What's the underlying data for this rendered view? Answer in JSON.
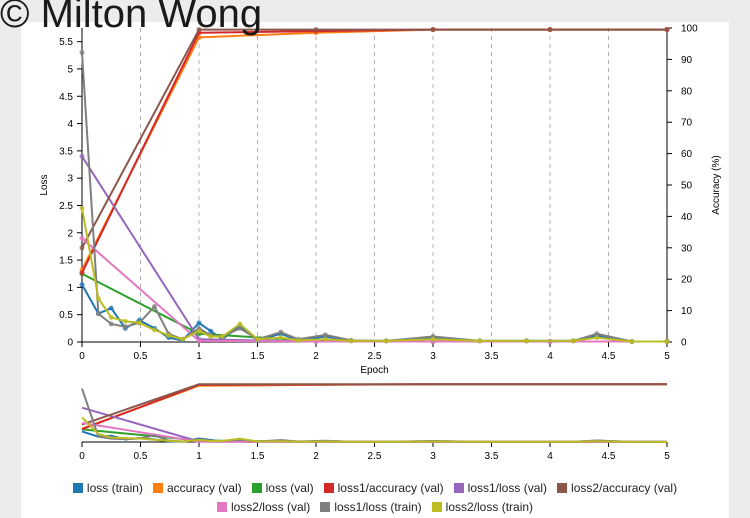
{
  "watermark": "© Milton Wong",
  "colors": {
    "loss_train": "#1f77b4",
    "accuracy_val": "#ff7f0e",
    "loss_val": "#2ca02c",
    "loss1_accuracy_val": "#d62728",
    "loss1_loss_val": "#9467bd",
    "loss2_accuracy_val": "#8c564b",
    "loss2_loss_val": "#e377c2",
    "loss1_loss_train": "#7f7f7f",
    "loss2_loss_train": "#bcbd22"
  },
  "chart_data": {
    "type": "line",
    "xlabel": "Epoch",
    "ylabel": "Loss",
    "y2label": "Accuracy (%)",
    "xlim": [
      0,
      5
    ],
    "ylim": [
      0,
      5.75
    ],
    "y2lim": [
      0,
      100
    ],
    "xticks": [
      "0",
      "0.5",
      "1",
      "1.5",
      "2",
      "2.5",
      "3",
      "3.5",
      "4",
      "4.5",
      "5"
    ],
    "yticks": [
      "0",
      "0.5",
      "1",
      "1.5",
      "2",
      "2.5",
      "3",
      "3.5",
      "4",
      "4.5",
      "5",
      "5.5"
    ],
    "y2ticks": [
      "0",
      "10",
      "20",
      "30",
      "40",
      "50",
      "60",
      "70",
      "80",
      "90",
      "100"
    ],
    "grid": "vertical dashed",
    "legend_position": "bottom",
    "series": [
      {
        "name": "loss (train)",
        "color_key": "loss_train",
        "axis": "left",
        "x": [
          0,
          0.14,
          0.25,
          0.37,
          0.49,
          0.62,
          0.74,
          0.86,
          1.0,
          1.1,
          1.2,
          1.35,
          1.5,
          1.7,
          1.85,
          2.08,
          2.3,
          2.6,
          3.0,
          3.4,
          3.8,
          4.2,
          4.4,
          4.7,
          5.0
        ],
        "y": [
          1.05,
          0.52,
          0.62,
          0.25,
          0.4,
          0.25,
          0.08,
          0.03,
          0.35,
          0.2,
          0.05,
          0.3,
          0.03,
          0.15,
          0.03,
          0.1,
          0.02,
          0.02,
          0.08,
          0.02,
          0.02,
          0.02,
          0.12,
          0.01,
          0.01
        ]
      },
      {
        "name": "accuracy (val)",
        "color_key": "accuracy_val",
        "axis": "right",
        "x": [
          0,
          1,
          2,
          3,
          4,
          5
        ],
        "y": [
          23,
          97,
          98.5,
          99.5,
          99.5,
          99.5
        ]
      },
      {
        "name": "loss (val)",
        "color_key": "loss_val",
        "axis": "left",
        "x": [
          0,
          1,
          2,
          3,
          4,
          5
        ],
        "y": [
          1.25,
          0.15,
          0.02,
          0.01,
          0.01,
          0.01
        ]
      },
      {
        "name": "loss1/accuracy (val)",
        "color_key": "loss1_accuracy_val",
        "axis": "right",
        "x": [
          0,
          1,
          2,
          3,
          4,
          5
        ],
        "y": [
          22,
          98.5,
          99,
          99.5,
          99.5,
          99.5
        ]
      },
      {
        "name": "loss1/loss (val)",
        "color_key": "loss1_loss_val",
        "axis": "left",
        "x": [
          0,
          1,
          2,
          3,
          4,
          5
        ],
        "y": [
          3.4,
          0.05,
          0.01,
          0.01,
          0.01,
          0.01
        ]
      },
      {
        "name": "loss2/accuracy (val)",
        "color_key": "loss2_accuracy_val",
        "axis": "right",
        "x": [
          0,
          1,
          2,
          3,
          4,
          5
        ],
        "y": [
          30,
          99.5,
          99.5,
          99.5,
          99.5,
          99.5
        ]
      },
      {
        "name": "loss2/loss (val)",
        "color_key": "loss2_loss_val",
        "axis": "left",
        "x": [
          0,
          1,
          2,
          3,
          4,
          5
        ],
        "y": [
          1.9,
          0.02,
          0.01,
          0.01,
          0.01,
          0.01
        ]
      },
      {
        "name": "loss1/loss (train)",
        "color_key": "loss1_loss_train",
        "axis": "left",
        "x": [
          0,
          0.14,
          0.25,
          0.37,
          0.49,
          0.62,
          0.74,
          0.86,
          1.0,
          1.1,
          1.2,
          1.35,
          1.5,
          1.7,
          1.85,
          2.08,
          2.3,
          2.6,
          3.0,
          3.4,
          3.8,
          4.2,
          4.4,
          4.7,
          5.0
        ],
        "y": [
          5.3,
          0.52,
          0.33,
          0.28,
          0.35,
          0.65,
          0.15,
          0.05,
          0.25,
          0.12,
          0.1,
          0.25,
          0.05,
          0.18,
          0.05,
          0.13,
          0.03,
          0.02,
          0.1,
          0.02,
          0.02,
          0.02,
          0.15,
          0.01,
          0.01
        ]
      },
      {
        "name": "loss2/loss (train)",
        "color_key": "loss2_loss_train",
        "axis": "left",
        "x": [
          0,
          0.14,
          0.25,
          0.37,
          0.49,
          0.62,
          0.74,
          0.86,
          1.0,
          1.1,
          1.2,
          1.35,
          1.5,
          1.7,
          1.85,
          2.08,
          2.3,
          2.6,
          3.0,
          3.4,
          3.8,
          4.2,
          4.4,
          4.7,
          5.0
        ],
        "y": [
          2.45,
          0.8,
          0.45,
          0.38,
          0.35,
          0.22,
          0.12,
          0.05,
          0.2,
          0.1,
          0.1,
          0.33,
          0.05,
          0.08,
          0.03,
          0.05,
          0.02,
          0.02,
          0.05,
          0.02,
          0.02,
          0.02,
          0.08,
          0.01,
          0.01
        ]
      }
    ]
  }
}
